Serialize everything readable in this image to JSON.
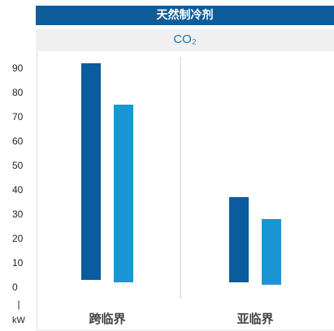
{
  "title": "天然制冷剂",
  "subtitle": "CO₂",
  "chart_data": {
    "type": "bar",
    "title": "天然制冷剂",
    "subtitle": "CO₂",
    "categories": [
      "跨临界",
      "亚临界"
    ],
    "series": [
      {
        "color": "#0a5c9c",
        "ranges": [
          [
            3,
            92
          ],
          [
            2,
            37
          ]
        ]
      },
      {
        "color": "#1a96d4",
        "ranges": [
          [
            2,
            75
          ],
          [
            1,
            28
          ]
        ]
      }
    ],
    "ylim": [
      0,
      90
    ],
    "yticks": [
      0,
      10,
      20,
      30,
      40,
      50,
      60,
      70,
      80,
      90
    ],
    "ylabel": "kW",
    "y_axis_marker": "|",
    "grid": false,
    "category_divider": true
  }
}
